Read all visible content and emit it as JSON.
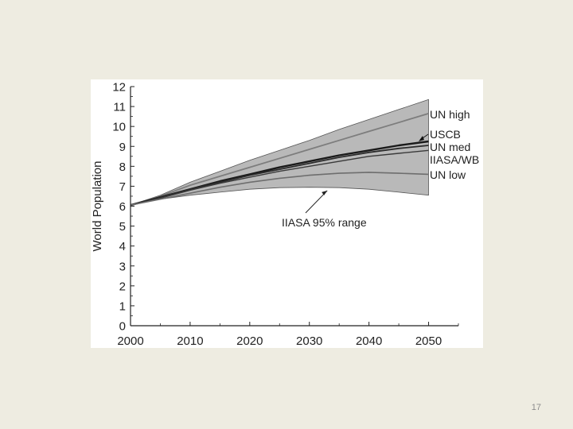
{
  "slide": {
    "number": "17"
  },
  "chart_data": {
    "type": "area",
    "title": "",
    "xlabel": "",
    "ylabel": "World Population",
    "xlim": [
      2000,
      2055
    ],
    "ylim": [
      0,
      12
    ],
    "x_ticks": [
      "2000",
      "2010",
      "2020",
      "2030",
      "2040",
      "2050"
    ],
    "y_ticks": [
      "0",
      "1",
      "2",
      "3",
      "4",
      "5",
      "6",
      "7",
      "8",
      "9",
      "10",
      "11",
      "12"
    ],
    "x": [
      2000,
      2005,
      2010,
      2015,
      2020,
      2025,
      2030,
      2035,
      2040,
      2045,
      2050
    ],
    "band": {
      "name": "IIASA 95% range",
      "color": "#b9b9b9",
      "upper": [
        6.05,
        6.55,
        7.2,
        7.75,
        8.3,
        8.8,
        9.3,
        9.85,
        10.35,
        10.85,
        11.35
      ],
      "lower": [
        6.05,
        6.35,
        6.55,
        6.7,
        6.85,
        6.93,
        6.95,
        6.93,
        6.85,
        6.7,
        6.55
      ]
    },
    "series": [
      {
        "name": "UN high",
        "color": "#7d7d7d",
        "width": 1.8,
        "values": [
          6.05,
          6.5,
          7.05,
          7.5,
          7.95,
          8.4,
          8.85,
          9.3,
          9.75,
          10.2,
          10.65
        ]
      },
      {
        "name": "USCB",
        "color": "#1a1a1a",
        "width": 2.4,
        "values": [
          6.05,
          6.45,
          6.85,
          7.25,
          7.6,
          7.95,
          8.25,
          8.55,
          8.8,
          9.05,
          9.25
        ]
      },
      {
        "name": "UN med",
        "color": "#2c2c2c",
        "width": 1.8,
        "values": [
          6.05,
          6.45,
          6.85,
          7.2,
          7.55,
          7.85,
          8.15,
          8.45,
          8.7,
          8.9,
          9.05
        ]
      },
      {
        "name": "IIASA/WB",
        "color": "#3a3a3a",
        "width": 1.4,
        "values": [
          6.05,
          6.4,
          6.8,
          7.15,
          7.45,
          7.75,
          8.0,
          8.25,
          8.5,
          8.65,
          8.8
        ]
      },
      {
        "name": "UN low",
        "color": "#6e6e6e",
        "width": 1.6,
        "values": [
          6.05,
          6.35,
          6.65,
          6.95,
          7.2,
          7.4,
          7.55,
          7.65,
          7.7,
          7.65,
          7.6
        ]
      }
    ],
    "annotations": [
      {
        "text": "IIASA 95% range",
        "arrow_to": [
          2033,
          6.9
        ]
      }
    ]
  }
}
